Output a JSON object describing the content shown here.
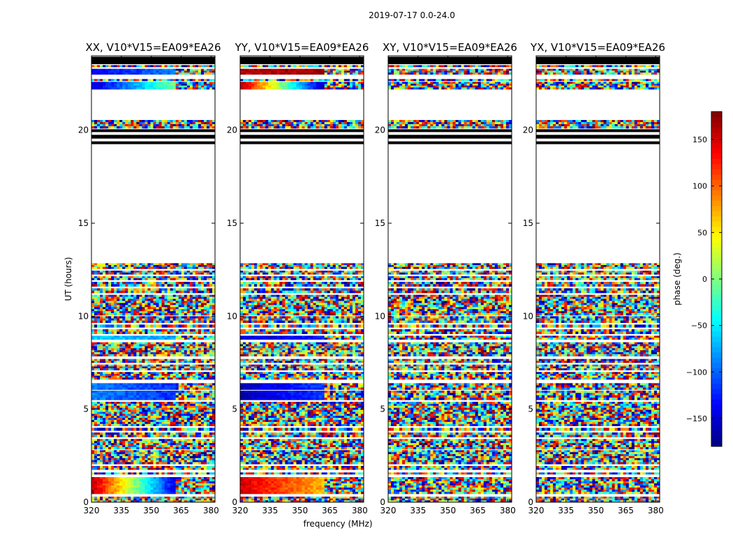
{
  "suptitle": "2019-07-17 0.0-24.0",
  "chart_data": {
    "type": "heatmap",
    "suptitle": "2019-07-17 0.0-24.0",
    "xlabel": "frequency (MHz)",
    "ylabel": "UT (hours)",
    "xlim": [
      320,
      382
    ],
    "ylim": [
      0,
      24
    ],
    "x_ticks": [
      320,
      335,
      350,
      365,
      380
    ],
    "y_ticks": [
      0,
      5,
      10,
      15,
      20
    ],
    "colormap": "jet",
    "colorbar": {
      "label": "phase (deg.)",
      "range": [
        -180,
        180
      ],
      "ticks": [
        -150,
        -100,
        -50,
        0,
        50,
        100,
        150
      ],
      "ticks_text": [
        "−150",
        "−100",
        "−50",
        "0",
        "50",
        "100",
        "150"
      ]
    },
    "flagged_gap_color": "#ffffff",
    "flagged_band_color": "#000000",
    "data_time_ranges_hours": [
      [
        0.0,
        0.3
      ],
      [
        0.45,
        1.35
      ],
      [
        1.5,
        1.6
      ],
      [
        1.75,
        1.95
      ],
      [
        2.05,
        2.8
      ],
      [
        2.85,
        3.4
      ],
      [
        3.5,
        3.75
      ],
      [
        3.85,
        4.0
      ],
      [
        4.1,
        5.4
      ],
      [
        5.5,
        6.0
      ],
      [
        6.05,
        6.4
      ],
      [
        6.6,
        7.0
      ],
      [
        7.1,
        7.4
      ],
      [
        7.5,
        7.7
      ],
      [
        7.85,
        8.6
      ],
      [
        8.75,
        8.95
      ],
      [
        9.05,
        9.3
      ],
      [
        9.4,
        9.55
      ],
      [
        9.65,
        10.0
      ],
      [
        10.05,
        11.15
      ],
      [
        11.25,
        11.5
      ],
      [
        11.6,
        11.85
      ],
      [
        11.95,
        12.15
      ],
      [
        12.25,
        12.45
      ],
      [
        12.55,
        12.85
      ],
      [
        20.1,
        20.55
      ],
      [
        22.2,
        22.6
      ],
      [
        22.65,
        22.75
      ],
      [
        23.0,
        23.3
      ],
      [
        23.4,
        23.5
      ]
    ],
    "flagged_bands_hours": [
      [
        19.25,
        19.4
      ],
      [
        19.55,
        19.75
      ],
      [
        19.9,
        20.05
      ],
      [
        23.55,
        23.95
      ]
    ],
    "rfi_edge_frequency_MHz": 362,
    "panels": [
      {
        "title": "XX, V10*V15=EA09*EA26",
        "coherent_blocks": [
          {
            "t": [
              0.45,
              1.35
            ],
            "phase_at_320": 160,
            "phase_at_362": -150
          },
          {
            "t": [
              5.5,
              6.4
            ],
            "phase_at_320": -90,
            "phase_at_362": -120
          },
          {
            "t": [
              8.75,
              8.95
            ],
            "phase_at_320": -60,
            "phase_at_362": -80
          },
          {
            "t": [
              22.2,
              22.6
            ],
            "phase_at_320": -150,
            "phase_at_362": 0
          },
          {
            "t": [
              23.0,
              23.3
            ],
            "phase_at_320": -140,
            "phase_at_362": -90
          }
        ]
      },
      {
        "title": "YY, V10*V15=EA09*EA26",
        "coherent_blocks": [
          {
            "t": [
              0.45,
              1.35
            ],
            "phase_at_320": 150,
            "phase_at_362": 70
          },
          {
            "t": [
              5.5,
              6.4
            ],
            "phase_at_320": -160,
            "phase_at_362": -110
          },
          {
            "t": [
              8.75,
              8.95
            ],
            "phase_at_320": -150,
            "phase_at_362": -130
          },
          {
            "t": [
              22.2,
              22.6
            ],
            "phase_at_320": 160,
            "phase_at_362": -170
          },
          {
            "t": [
              23.0,
              23.3
            ],
            "phase_at_320": 160,
            "phase_at_362": 170
          }
        ]
      },
      {
        "title": "XY, V10*V15=EA09*EA26",
        "coherent_blocks": []
      },
      {
        "title": "YX, V10*V15=EA09*EA26",
        "coherent_blocks": []
      }
    ]
  }
}
